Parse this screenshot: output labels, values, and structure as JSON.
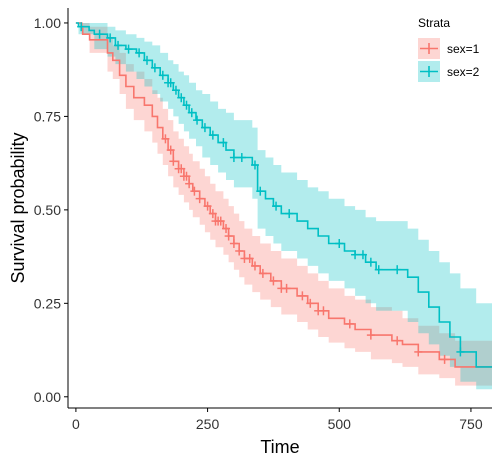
{
  "chart_data": {
    "type": "line",
    "xlabel": "Time",
    "ylabel": "Survival probability",
    "xlim": [
      -15,
      790
    ],
    "ylim": [
      -0.03,
      1.04
    ],
    "x_ticks": [
      0,
      250,
      500,
      750
    ],
    "x_tick_labels": [
      "0",
      "250",
      "500",
      "750"
    ],
    "y_ticks": [
      0,
      0.25,
      0.5,
      0.75,
      1
    ],
    "y_tick_labels": [
      "0.00",
      "0.25",
      "0.50",
      "0.75",
      "1.00"
    ],
    "grid": false,
    "legend": {
      "title": "Strata",
      "position": "top-right"
    },
    "series": [
      {
        "name": "sex=1",
        "color": "#F8766D",
        "fill": "#F8766D",
        "steps": [
          [
            0,
            1.0
          ],
          [
            11,
            0.985
          ],
          [
            13,
            0.97
          ],
          [
            26,
            0.955
          ],
          [
            60,
            0.92
          ],
          [
            70,
            0.9
          ],
          [
            83,
            0.86
          ],
          [
            95,
            0.83
          ],
          [
            110,
            0.8
          ],
          [
            130,
            0.78
          ],
          [
            145,
            0.75
          ],
          [
            155,
            0.72
          ],
          [
            165,
            0.69
          ],
          [
            175,
            0.66
          ],
          [
            185,
            0.63
          ],
          [
            195,
            0.61
          ],
          [
            205,
            0.59
          ],
          [
            215,
            0.57
          ],
          [
            222,
            0.55
          ],
          [
            235,
            0.53
          ],
          [
            245,
            0.51
          ],
          [
            255,
            0.49
          ],
          [
            265,
            0.47
          ],
          [
            280,
            0.45
          ],
          [
            290,
            0.43
          ],
          [
            300,
            0.41
          ],
          [
            310,
            0.39
          ],
          [
            320,
            0.37
          ],
          [
            335,
            0.35
          ],
          [
            350,
            0.33
          ],
          [
            370,
            0.31
          ],
          [
            390,
            0.29
          ],
          [
            420,
            0.27
          ],
          [
            440,
            0.25
          ],
          [
            460,
            0.23
          ],
          [
            480,
            0.21
          ],
          [
            510,
            0.195
          ],
          [
            530,
            0.18
          ],
          [
            560,
            0.165
          ],
          [
            600,
            0.15
          ],
          [
            620,
            0.14
          ],
          [
            650,
            0.12
          ],
          [
            690,
            0.1
          ],
          [
            720,
            0.08
          ],
          [
            790,
            0.08
          ]
        ],
        "upper": [
          [
            0,
            1.0
          ],
          [
            11,
            1.0
          ],
          [
            26,
            0.99
          ],
          [
            60,
            0.96
          ],
          [
            70,
            0.94
          ],
          [
            83,
            0.92
          ],
          [
            95,
            0.89
          ],
          [
            110,
            0.87
          ],
          [
            130,
            0.85
          ],
          [
            145,
            0.82
          ],
          [
            155,
            0.8
          ],
          [
            165,
            0.77
          ],
          [
            175,
            0.74
          ],
          [
            185,
            0.71
          ],
          [
            195,
            0.69
          ],
          [
            205,
            0.67
          ],
          [
            215,
            0.65
          ],
          [
            222,
            0.63
          ],
          [
            235,
            0.61
          ],
          [
            245,
            0.59
          ],
          [
            255,
            0.57
          ],
          [
            265,
            0.55
          ],
          [
            280,
            0.53
          ],
          [
            290,
            0.51
          ],
          [
            300,
            0.49
          ],
          [
            310,
            0.47
          ],
          [
            320,
            0.45
          ],
          [
            335,
            0.43
          ],
          [
            350,
            0.41
          ],
          [
            370,
            0.39
          ],
          [
            390,
            0.37
          ],
          [
            420,
            0.35
          ],
          [
            440,
            0.33
          ],
          [
            460,
            0.31
          ],
          [
            480,
            0.29
          ],
          [
            510,
            0.27
          ],
          [
            530,
            0.26
          ],
          [
            560,
            0.24
          ],
          [
            600,
            0.23
          ],
          [
            620,
            0.21
          ],
          [
            650,
            0.19
          ],
          [
            690,
            0.17
          ],
          [
            720,
            0.15
          ],
          [
            790,
            0.15
          ]
        ],
        "lower": [
          [
            0,
            1.0
          ],
          [
            11,
            0.97
          ],
          [
            26,
            0.92
          ],
          [
            60,
            0.87
          ],
          [
            70,
            0.85
          ],
          [
            83,
            0.81
          ],
          [
            95,
            0.77
          ],
          [
            110,
            0.74
          ],
          [
            130,
            0.71
          ],
          [
            145,
            0.68
          ],
          [
            155,
            0.65
          ],
          [
            165,
            0.62
          ],
          [
            175,
            0.59
          ],
          [
            185,
            0.56
          ],
          [
            195,
            0.54
          ],
          [
            205,
            0.52
          ],
          [
            215,
            0.5
          ],
          [
            222,
            0.48
          ],
          [
            235,
            0.46
          ],
          [
            245,
            0.44
          ],
          [
            255,
            0.42
          ],
          [
            265,
            0.4
          ],
          [
            280,
            0.38
          ],
          [
            290,
            0.36
          ],
          [
            300,
            0.34
          ],
          [
            310,
            0.32
          ],
          [
            320,
            0.3
          ],
          [
            335,
            0.28
          ],
          [
            350,
            0.26
          ],
          [
            370,
            0.24
          ],
          [
            390,
            0.22
          ],
          [
            420,
            0.2
          ],
          [
            440,
            0.18
          ],
          [
            460,
            0.16
          ],
          [
            480,
            0.145
          ],
          [
            510,
            0.13
          ],
          [
            530,
            0.12
          ],
          [
            560,
            0.1
          ],
          [
            600,
            0.09
          ],
          [
            620,
            0.08
          ],
          [
            650,
            0.06
          ],
          [
            690,
            0.05
          ],
          [
            720,
            0.03
          ],
          [
            790,
            0.03
          ]
        ],
        "censor_x": [
          170,
          180,
          185,
          195,
          200,
          205,
          210,
          215,
          225,
          235,
          250,
          260,
          265,
          270,
          275,
          285,
          290,
          300,
          310,
          320,
          330,
          340,
          355,
          375,
          390,
          400,
          430,
          445,
          460,
          470,
          520,
          560,
          610,
          650,
          700
        ]
      },
      {
        "name": "sex=2",
        "color": "#00BFC4",
        "fill": "#00BFC4",
        "steps": [
          [
            0,
            1.0
          ],
          [
            5,
            0.99
          ],
          [
            25,
            0.98
          ],
          [
            35,
            0.97
          ],
          [
            60,
            0.96
          ],
          [
            75,
            0.94
          ],
          [
            95,
            0.93
          ],
          [
            115,
            0.92
          ],
          [
            130,
            0.9
          ],
          [
            145,
            0.88
          ],
          [
            160,
            0.86
          ],
          [
            175,
            0.84
          ],
          [
            185,
            0.82
          ],
          [
            195,
            0.8
          ],
          [
            205,
            0.78
          ],
          [
            215,
            0.76
          ],
          [
            228,
            0.74
          ],
          [
            240,
            0.72
          ],
          [
            255,
            0.7
          ],
          [
            270,
            0.68
          ],
          [
            285,
            0.66
          ],
          [
            300,
            0.64
          ],
          [
            335,
            0.62
          ],
          [
            345,
            0.55
          ],
          [
            360,
            0.53
          ],
          [
            375,
            0.51
          ],
          [
            390,
            0.49
          ],
          [
            420,
            0.47
          ],
          [
            440,
            0.45
          ],
          [
            460,
            0.43
          ],
          [
            480,
            0.41
          ],
          [
            510,
            0.39
          ],
          [
            530,
            0.38
          ],
          [
            550,
            0.36
          ],
          [
            570,
            0.34
          ],
          [
            630,
            0.32
          ],
          [
            650,
            0.28
          ],
          [
            670,
            0.24
          ],
          [
            690,
            0.2
          ],
          [
            710,
            0.16
          ],
          [
            730,
            0.12
          ],
          [
            760,
            0.08
          ],
          [
            790,
            0.08
          ]
        ],
        "upper": [
          [
            0,
            1.0
          ],
          [
            5,
            1.0
          ],
          [
            35,
            1.0
          ],
          [
            60,
            0.99
          ],
          [
            75,
            0.98
          ],
          [
            95,
            0.97
          ],
          [
            115,
            0.96
          ],
          [
            130,
            0.95
          ],
          [
            145,
            0.94
          ],
          [
            160,
            0.92
          ],
          [
            175,
            0.9
          ],
          [
            185,
            0.89
          ],
          [
            195,
            0.87
          ],
          [
            205,
            0.86
          ],
          [
            215,
            0.84
          ],
          [
            228,
            0.82
          ],
          [
            240,
            0.81
          ],
          [
            255,
            0.79
          ],
          [
            270,
            0.77
          ],
          [
            285,
            0.76
          ],
          [
            300,
            0.74
          ],
          [
            335,
            0.72
          ],
          [
            345,
            0.66
          ],
          [
            360,
            0.64
          ],
          [
            375,
            0.62
          ],
          [
            390,
            0.6
          ],
          [
            420,
            0.58
          ],
          [
            440,
            0.56
          ],
          [
            460,
            0.55
          ],
          [
            480,
            0.53
          ],
          [
            510,
            0.51
          ],
          [
            530,
            0.5
          ],
          [
            550,
            0.48
          ],
          [
            570,
            0.47
          ],
          [
            630,
            0.45
          ],
          [
            650,
            0.42
          ],
          [
            670,
            0.39
          ],
          [
            690,
            0.36
          ],
          [
            710,
            0.33
          ],
          [
            730,
            0.29
          ],
          [
            760,
            0.25
          ],
          [
            790,
            0.25
          ]
        ],
        "lower": [
          [
            0,
            1.0
          ],
          [
            5,
            0.97
          ],
          [
            35,
            0.93
          ],
          [
            60,
            0.91
          ],
          [
            75,
            0.89
          ],
          [
            95,
            0.87
          ],
          [
            115,
            0.85
          ],
          [
            130,
            0.83
          ],
          [
            145,
            0.81
          ],
          [
            160,
            0.79
          ],
          [
            175,
            0.77
          ],
          [
            185,
            0.75
          ],
          [
            195,
            0.73
          ],
          [
            205,
            0.71
          ],
          [
            215,
            0.69
          ],
          [
            228,
            0.67
          ],
          [
            240,
            0.64
          ],
          [
            255,
            0.62
          ],
          [
            270,
            0.6
          ],
          [
            285,
            0.58
          ],
          [
            300,
            0.56
          ],
          [
            335,
            0.53
          ],
          [
            345,
            0.45
          ],
          [
            360,
            0.43
          ],
          [
            375,
            0.41
          ],
          [
            390,
            0.39
          ],
          [
            420,
            0.37
          ],
          [
            440,
            0.35
          ],
          [
            460,
            0.33
          ],
          [
            480,
            0.31
          ],
          [
            510,
            0.29
          ],
          [
            530,
            0.27
          ],
          [
            550,
            0.25
          ],
          [
            570,
            0.23
          ],
          [
            630,
            0.2
          ],
          [
            650,
            0.17
          ],
          [
            670,
            0.14
          ],
          [
            690,
            0.11
          ],
          [
            710,
            0.08
          ],
          [
            730,
            0.04
          ],
          [
            760,
            0.02
          ],
          [
            790,
            0.02
          ]
        ],
        "censor_x": [
          10,
          45,
          65,
          80,
          100,
          120,
          135,
          150,
          165,
          175,
          180,
          190,
          200,
          210,
          220,
          230,
          245,
          260,
          280,
          300,
          315,
          340,
          350,
          380,
          405,
          500,
          530,
          545,
          560,
          575,
          610,
          730
        ]
      }
    ]
  }
}
